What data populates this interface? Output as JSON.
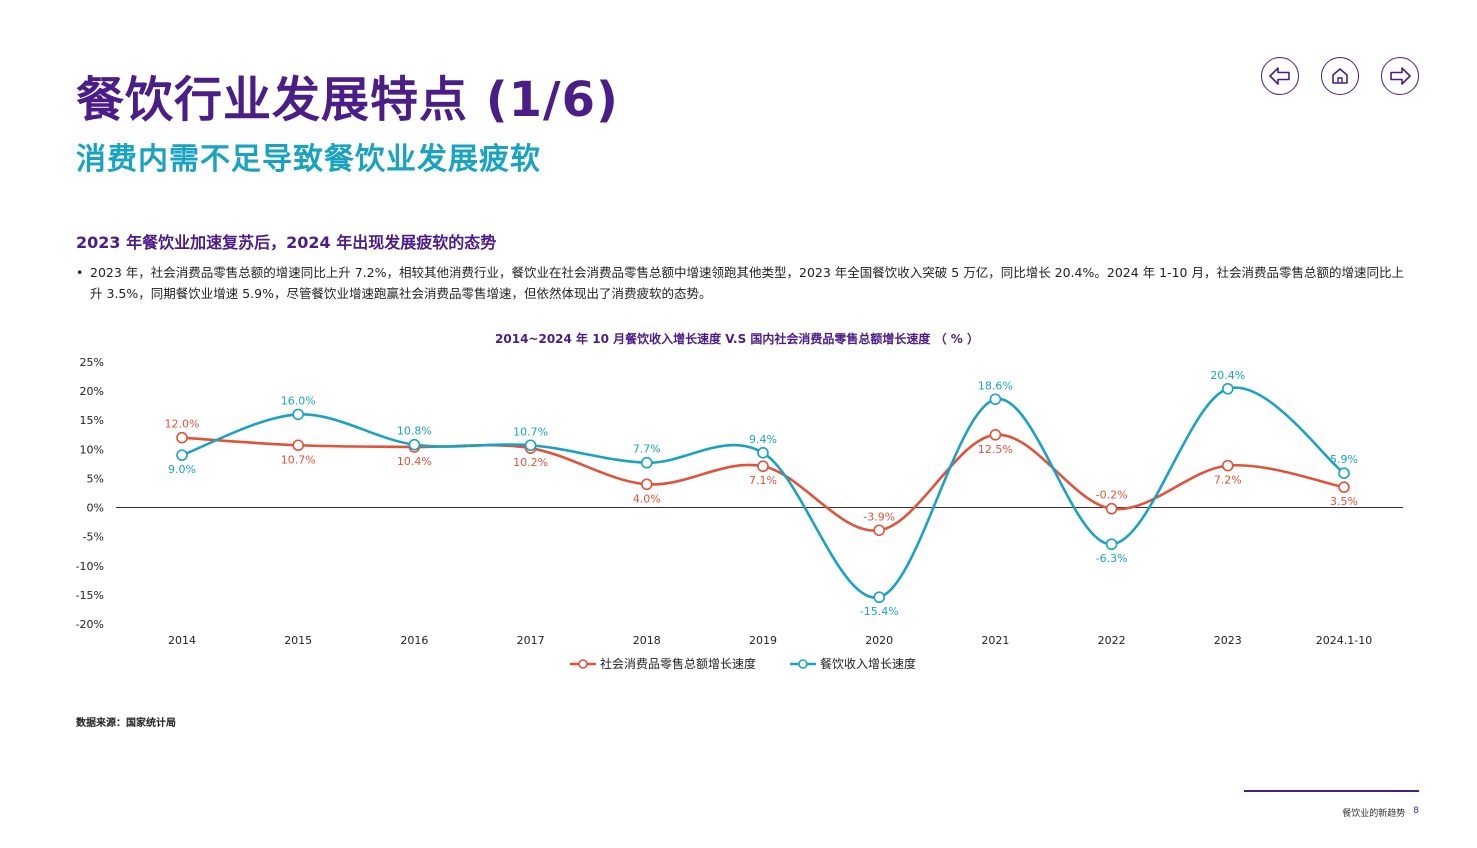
{
  "header": {
    "title": "餐饮行业发展特点 (1/6)",
    "subtitle": "消费内需不足导致餐饮业发展疲软"
  },
  "nav": {
    "prev_icon": "arrow-left-icon",
    "home_icon": "home-icon",
    "next_icon": "arrow-right-icon"
  },
  "section": {
    "heading": "2023 年餐饮业加速复苏后，2024 年出现发展疲软的态势",
    "bullet_marker": "•",
    "bullet": "2023 年，社会消费品零售总额的增速同比上升 7.2%，相较其他消费行业，餐饮业在社会消费品零售总额中增速领跑其他类型，2023 年全国餐饮收入突破 5 万亿，同比增长 20.4%。2024 年 1-10 月，社会消费品零售总额的增速同比上升 3.5%，同期餐饮业增速 5.9%，尽管餐饮业增速跑赢社会消费品零售增速，但依然体现出了消费疲软的态势。"
  },
  "chart_data": {
    "type": "line",
    "title": "2014~2024 年 10 月餐饮收入增长速度 V.S 国内社会消费品零售总额增长速度 （ % ）",
    "categories": [
      "2014",
      "2015",
      "2016",
      "2017",
      "2018",
      "2019",
      "2020",
      "2021",
      "2022",
      "2023",
      "2024.1-10"
    ],
    "series": [
      {
        "name": "社会消费品零售总额增长速度",
        "color": "#e0533a",
        "values": [
          12.0,
          10.7,
          10.4,
          10.2,
          4.0,
          7.1,
          -3.9,
          12.5,
          -0.2,
          7.2,
          3.5
        ],
        "labels": [
          "12.0%",
          "10.7%",
          "10.4%",
          "10.2%",
          "4.0%",
          "7.1%",
          "-3.9%",
          "12.5%",
          "-0.2%",
          "7.2%",
          "3.5%"
        ]
      },
      {
        "name": "餐饮收入增长速度",
        "color": "#1aa3c1",
        "values": [
          9.0,
          16.0,
          10.8,
          10.7,
          7.7,
          9.4,
          -15.4,
          18.6,
          -6.3,
          20.4,
          5.9
        ],
        "labels": [
          "9.0%",
          "16.0%",
          "10.8%",
          "10.7%",
          "7.7%",
          "9.4%",
          "-15.4%",
          "18.6%",
          "-6.3%",
          "20.4%",
          "5.9%"
        ]
      }
    ],
    "ylim": [
      -20,
      25
    ],
    "yticks": [
      25,
      20,
      15,
      10,
      5,
      0,
      -5,
      -10,
      -15,
      -20
    ],
    "ytick_labels": [
      "25%",
      "20%",
      "15%",
      "10%",
      "5%",
      "0%",
      "-5%",
      "-10%",
      "-15%",
      "-20%"
    ],
    "xlabel": "",
    "ylabel": "",
    "grid": false,
    "legend_position": "bottom-center"
  },
  "source": "数据来源：国家统计局",
  "footer": {
    "label": "餐饮业的新趋势",
    "page": "8"
  }
}
